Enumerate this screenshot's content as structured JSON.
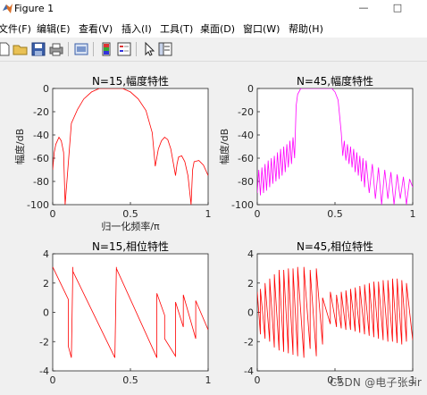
{
  "window": {
    "title": "Figure 1",
    "minimize_glyph": "—",
    "maximize_glyph": "□"
  },
  "menu": [
    "文件(F)",
    "编辑(E)",
    "查看(V)",
    "插入(I)",
    "工具(T)",
    "桌面(D)",
    "窗口(W)",
    "帮助(H)"
  ],
  "toolbar": {
    "icons": [
      "new-figure-icon",
      "open-folder-icon",
      "save-icon",
      "print-icon",
      "print-preview-icon",
      "colorbar-icon",
      "legend-icon",
      "pointer-icon",
      "property-editor-icon"
    ]
  },
  "watermark": "CSDN @电子张sir",
  "chart_data": [
    {
      "type": "line",
      "title": "N=15,幅度特性",
      "xlabel": "归一化频率/π",
      "ylabel": "幅度/dB",
      "xlim": [
        0,
        1
      ],
      "ylim": [
        -100,
        0
      ],
      "xticks": [
        "0",
        "0.5",
        "1"
      ],
      "yticks": [
        "0",
        "-20",
        "-40",
        "-60",
        "-80",
        "-100"
      ],
      "color": "#ff0000",
      "series": [
        {
          "x": [
            0,
            0.01,
            0.02,
            0.04,
            0.055,
            0.07,
            0.08,
            0.12,
            0.16,
            0.2,
            0.25,
            0.3,
            0.35,
            0.4,
            0.45,
            0.5,
            0.55,
            0.6,
            0.64,
            0.66,
            0.68,
            0.7,
            0.72,
            0.74,
            0.76,
            0.79,
            0.8,
            0.81,
            0.83,
            0.85,
            0.87,
            0.89,
            0.9,
            0.91,
            0.94,
            0.97,
            1.0
          ],
          "y": [
            -70,
            -55,
            -48,
            -42,
            -45,
            -55,
            -100,
            -30,
            -18,
            -9,
            -3,
            0,
            0,
            0,
            0,
            -3,
            -9,
            -19,
            -38,
            -67,
            -52,
            -45,
            -42,
            -44,
            -52,
            -75,
            -65,
            -59,
            -58,
            -63,
            -75,
            -100,
            -70,
            -63,
            -62,
            -66,
            -75
          ]
        }
      ]
    },
    {
      "type": "line",
      "title": "N=45,幅度特性",
      "xlabel": "",
      "ylabel": "幅度/dB",
      "xlim": [
        0,
        1
      ],
      "ylim": [
        -100,
        0
      ],
      "xticks": [
        "0",
        "0.5",
        "1"
      ],
      "yticks": [
        "0",
        "-20",
        "-40",
        "-60",
        "-80",
        "-100"
      ],
      "color": "#ff00ff",
      "series": [
        {
          "x": [
            0,
            0.01,
            0.02,
            0.03,
            0.04,
            0.05,
            0.06,
            0.07,
            0.08,
            0.09,
            0.1,
            0.11,
            0.12,
            0.13,
            0.14,
            0.15,
            0.16,
            0.17,
            0.18,
            0.19,
            0.2,
            0.21,
            0.22,
            0.23,
            0.24,
            0.25,
            0.26,
            0.28,
            0.3,
            0.32,
            0.35,
            0.4,
            0.45,
            0.48,
            0.5,
            0.52,
            0.54,
            0.55,
            0.56,
            0.57,
            0.58,
            0.59,
            0.6,
            0.61,
            0.62,
            0.63,
            0.64,
            0.65,
            0.66,
            0.67,
            0.68,
            0.69,
            0.7,
            0.72,
            0.74,
            0.76,
            0.78,
            0.8,
            0.82,
            0.84,
            0.86,
            0.88,
            0.9,
            0.92,
            0.94,
            0.96,
            0.98,
            1.0
          ],
          "y": [
            -90,
            -70,
            -92,
            -68,
            -90,
            -65,
            -88,
            -62,
            -85,
            -60,
            -82,
            -58,
            -80,
            -55,
            -78,
            -52,
            -75,
            -50,
            -72,
            -48,
            -68,
            -45,
            -65,
            -42,
            -60,
            -15,
            -5,
            0,
            0,
            0,
            0,
            0,
            0,
            0,
            -3,
            -10,
            -38,
            -58,
            -45,
            -62,
            -48,
            -65,
            -50,
            -68,
            -52,
            -72,
            -55,
            -75,
            -58,
            -80,
            -60,
            -85,
            -62,
            -90,
            -65,
            -95,
            -68,
            -100,
            -70,
            -95,
            -72,
            -100,
            -74,
            -95,
            -76,
            -100,
            -78,
            -85
          ]
        }
      ]
    },
    {
      "type": "line",
      "title": "N=15,相位特性",
      "xlabel": "",
      "ylabel": "",
      "xlim": [
        0,
        1
      ],
      "ylim": [
        -4,
        4
      ],
      "xticks": [
        "0",
        "0.5",
        "1"
      ],
      "yticks": [
        "4",
        "2",
        "0",
        "-2",
        "-4"
      ],
      "color": "#ff0000",
      "series": [
        {
          "x": [
            0,
            0.1,
            0.1,
            0.12,
            0.13,
            0.13,
            0.4,
            0.41,
            0.41,
            0.67,
            0.67,
            0.72,
            0.72,
            0.79,
            0.79,
            0.84,
            0.84,
            0.92,
            0.92,
            1.0
          ],
          "y": [
            3.1,
            0.9,
            -2.3,
            -3.1,
            3.1,
            2.8,
            -3.1,
            3.1,
            3.0,
            -3.1,
            1.3,
            -0.2,
            -1.8,
            -3.0,
            0.7,
            -1.0,
            1.2,
            -1.8,
            0.8,
            -1.2
          ]
        }
      ]
    },
    {
      "type": "line",
      "title": "N=45,相位特性",
      "xlabel": "",
      "ylabel": "",
      "xlim": [
        0,
        1
      ],
      "ylim": [
        -4,
        4
      ],
      "xticks": [
        "0",
        "0.5",
        "1"
      ],
      "yticks": [
        "4",
        "2",
        "0",
        "-2",
        "-4"
      ],
      "color": "#ff0000",
      "series": [
        {
          "x": [
            0,
            0.02,
            0.02,
            0.05,
            0.05,
            0.08,
            0.08,
            0.11,
            0.11,
            0.14,
            0.14,
            0.17,
            0.17,
            0.2,
            0.2,
            0.23,
            0.23,
            0.26,
            0.26,
            0.3,
            0.3,
            0.34,
            0.34,
            0.38,
            0.38,
            0.42,
            0.42,
            0.47,
            0.47,
            0.51,
            0.51,
            0.54,
            0.54,
            0.57,
            0.57,
            0.6,
            0.6,
            0.63,
            0.63,
            0.66,
            0.66,
            0.69,
            0.69,
            0.72,
            0.72,
            0.75,
            0.75,
            0.78,
            0.78,
            0.81,
            0.81,
            0.84,
            0.84,
            0.87,
            0.87,
            0.9,
            0.9,
            0.93,
            0.93,
            0.96,
            0.96,
            1.0
          ],
          "y": [
            1.4,
            -1.5,
            1.6,
            -1.8,
            2.0,
            -2.0,
            2.3,
            -2.4,
            2.6,
            -2.6,
            2.9,
            -2.7,
            2.9,
            -2.8,
            3.0,
            -2.9,
            3.0,
            -3.0,
            3.1,
            -3.1,
            3.1,
            -2.5,
            2.9,
            -3.0,
            3.0,
            -2.2,
            1.0,
            -0.8,
            1.4,
            -1.0,
            1.2,
            -1.1,
            1.4,
            -1.2,
            1.5,
            -1.2,
            1.6,
            -1.3,
            1.7,
            -1.4,
            1.8,
            -1.5,
            1.9,
            -1.6,
            2.0,
            -1.7,
            2.1,
            -1.8,
            2.1,
            -1.9,
            2.2,
            -2.0,
            2.2,
            -2.0,
            2.3,
            -2.1,
            2.3,
            -2.2,
            2.2,
            -2.0,
            2.0,
            -1.9
          ]
        }
      ]
    }
  ]
}
